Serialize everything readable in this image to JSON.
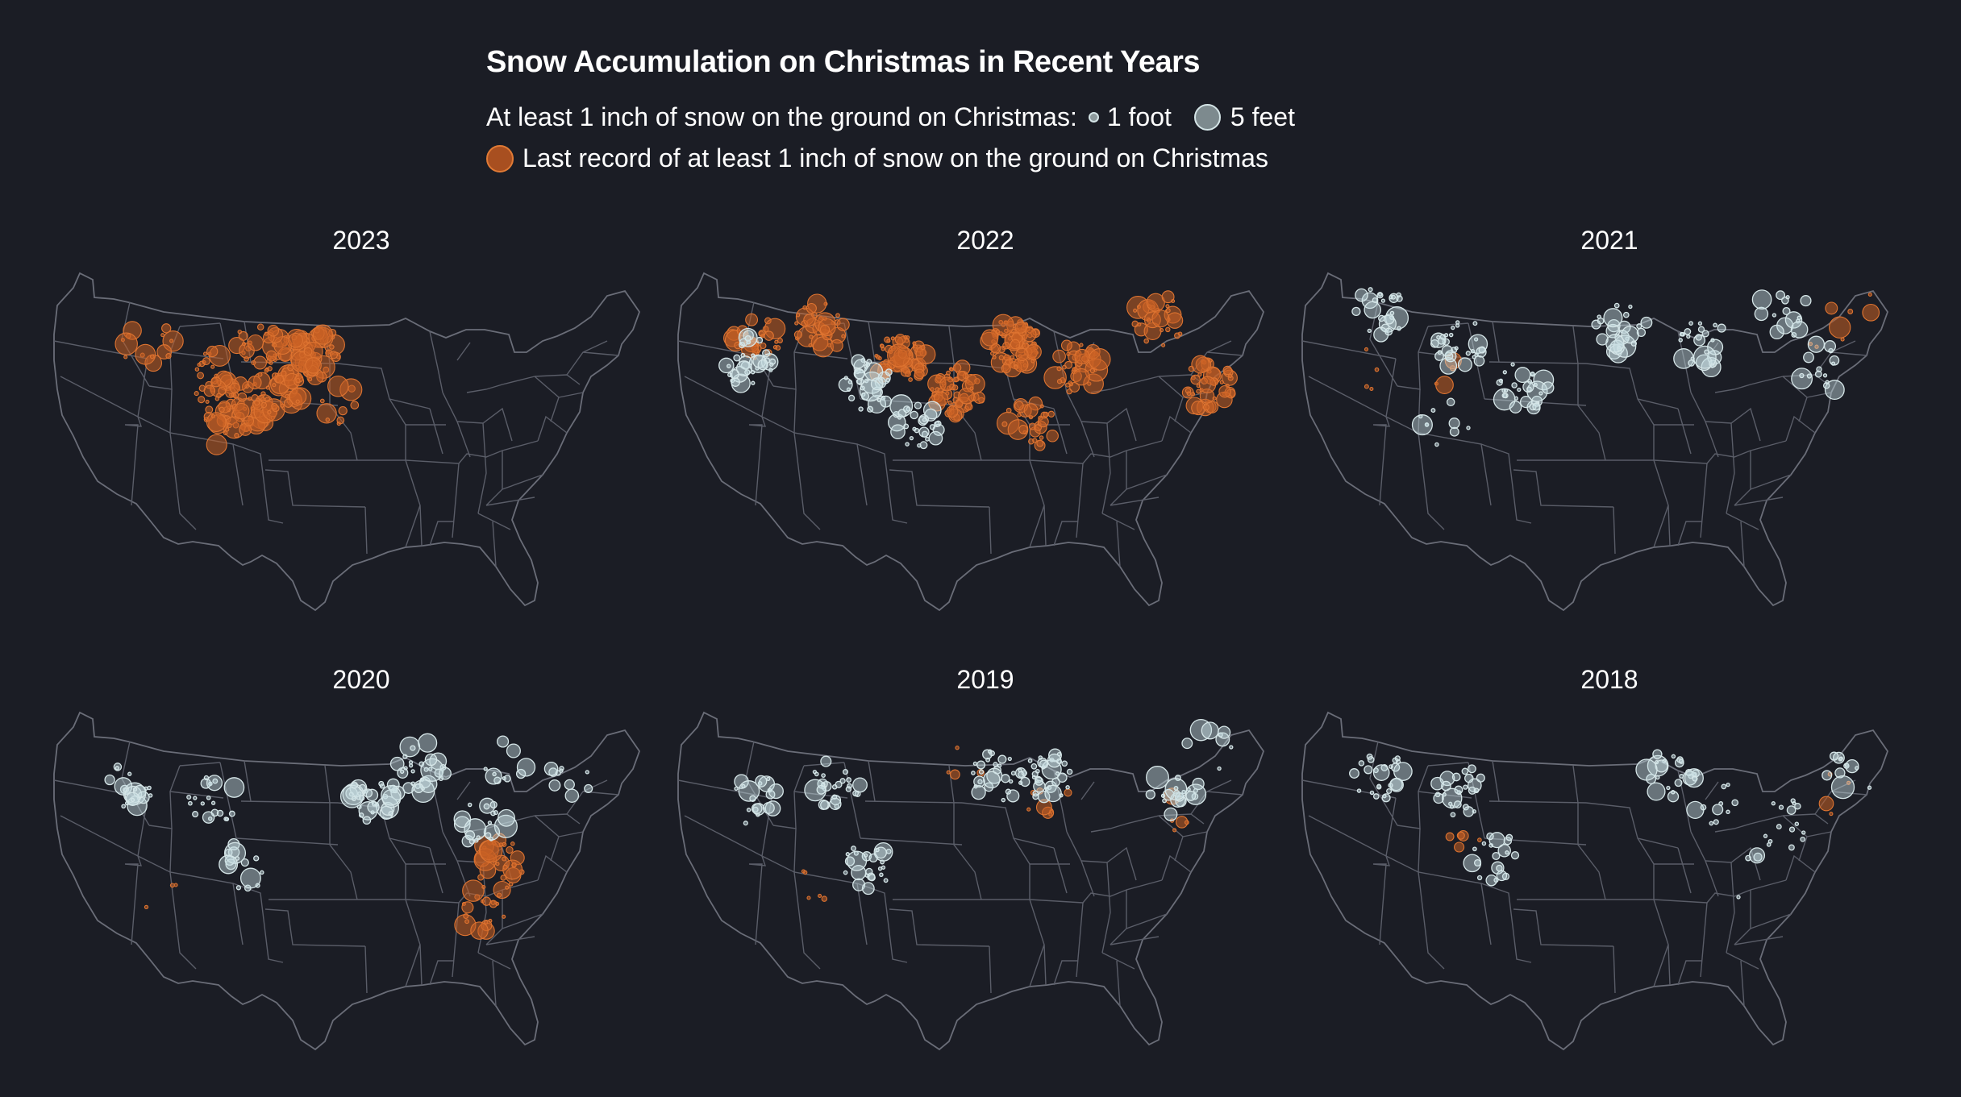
{
  "title": "Snow Accumulation on Christmas in Recent Years",
  "legend": {
    "recent_label": "At least 1 inch of snow on the ground on Christmas:",
    "small_label": "1 foot",
    "big_label": "5 feet",
    "last_record_label": "Last record of at least 1 inch of snow on the ground on Christmas"
  },
  "colors": {
    "background": "#1b1d25",
    "recent_fill": "#c8dee2",
    "last_record_fill": "#d4682a",
    "state_lines": "#5a5d68"
  },
  "panels": [
    {
      "year": "2023",
      "seed": 11,
      "recent": [],
      "last": [
        [
          200,
          140,
          30
        ],
        [
          240,
          180,
          50
        ],
        [
          280,
          160,
          40
        ],
        [
          330,
          110,
          45
        ],
        [
          120,
          100,
          15
        ],
        [
          300,
          120,
          60
        ],
        [
          260,
          100,
          20
        ],
        [
          220,
          200,
          15
        ],
        [
          360,
          170,
          10
        ]
      ]
    },
    {
      "year": "2022",
      "seed": 23,
      "recent": [
        [
          90,
          120,
          35
        ],
        [
          240,
          150,
          35
        ],
        [
          300,
          200,
          30
        ]
      ],
      "last": [
        [
          100,
          90,
          30
        ],
        [
          280,
          120,
          70
        ],
        [
          420,
          100,
          90
        ],
        [
          500,
          130,
          40
        ],
        [
          600,
          70,
          30
        ],
        [
          660,
          150,
          45
        ],
        [
          440,
          200,
          30
        ],
        [
          350,
          160,
          60
        ],
        [
          180,
          80,
          35
        ]
      ]
    },
    {
      "year": "2021",
      "seed": 37,
      "recent": [
        [
          100,
          60,
          25
        ],
        [
          200,
          100,
          30
        ],
        [
          280,
          150,
          30
        ],
        [
          400,
          80,
          25
        ],
        [
          500,
          100,
          25
        ],
        [
          600,
          60,
          15
        ],
        [
          650,
          130,
          15
        ],
        [
          180,
          200,
          10
        ]
      ],
      "last": [
        [
          90,
          130,
          4
        ],
        [
          190,
          140,
          4
        ],
        [
          650,
          80,
          5
        ],
        [
          690,
          40,
          3
        ]
      ]
    },
    {
      "year": "2020",
      "seed": 41,
      "recent": [
        [
          100,
          100,
          20
        ],
        [
          200,
          120,
          20
        ],
        [
          240,
          200,
          15
        ],
        [
          400,
          120,
          35
        ],
        [
          460,
          80,
          30
        ],
        [
          540,
          150,
          20
        ],
        [
          560,
          80,
          10
        ],
        [
          650,
          90,
          10
        ]
      ],
      "last": [
        [
          560,
          200,
          30
        ],
        [
          540,
          260,
          20
        ],
        [
          140,
          230,
          3
        ]
      ]
    },
    {
      "year": "2019",
      "seed": 53,
      "recent": [
        [
          100,
          120,
          20
        ],
        [
          200,
          100,
          25
        ],
        [
          240,
          200,
          25
        ],
        [
          400,
          90,
          30
        ],
        [
          460,
          90,
          35
        ],
        [
          620,
          110,
          20
        ],
        [
          660,
          60,
          8
        ]
      ],
      "last": [
        [
          180,
          230,
          5
        ],
        [
          460,
          110,
          8
        ],
        [
          620,
          140,
          5
        ],
        [
          360,
          80,
          4
        ]
      ]
    },
    {
      "year": "2018",
      "seed": 67,
      "recent": [
        [
          100,
          90,
          25
        ],
        [
          200,
          110,
          25
        ],
        [
          240,
          190,
          20
        ],
        [
          460,
          90,
          25
        ],
        [
          520,
          120,
          10
        ],
        [
          600,
          150,
          15
        ],
        [
          680,
          90,
          12
        ],
        [
          560,
          220,
          4
        ]
      ],
      "last": [
        [
          200,
          160,
          5
        ],
        [
          660,
          120,
          4
        ]
      ]
    }
  ]
}
